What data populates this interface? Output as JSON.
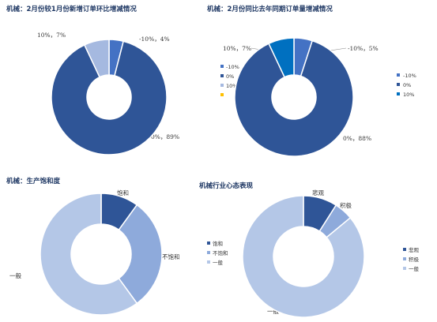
{
  "chart_data": [
    {
      "type": "pie",
      "title": "机械：2月份较1月份新增订单环比增减情况",
      "categories": [
        "-10%",
        "0%",
        "10%"
      ],
      "values": [
        4,
        89,
        7
      ],
      "labels": [
        "-10%，4%",
        "0%，89%",
        "10%，7%"
      ],
      "colors": [
        "#4472c4",
        "#2f5597",
        "#a5b9e0"
      ],
      "legend": "none"
    },
    {
      "type": "pie",
      "title": "机械：2月份同比去年同期订单量增减情况",
      "categories": [
        "-10%",
        "0%",
        "10%"
      ],
      "values": [
        5,
        88,
        7
      ],
      "labels": [
        "-10%，5%",
        "0%，88%",
        "10%，7%"
      ],
      "colors": [
        "#4472c4",
        "#2f5597",
        "#0070c0"
      ],
      "legend": "left and right"
    },
    {
      "type": "pie",
      "title": "机械：生产饱和度",
      "categories": [
        "饱和",
        "不饱和",
        "一般"
      ],
      "values": [
        10,
        30,
        60
      ],
      "labels": [
        "饱和",
        "不饱和",
        "一般"
      ],
      "colors": [
        "#2f5597",
        "#8eaadb",
        "#b4c7e7"
      ],
      "legend": "middle"
    },
    {
      "type": "pie",
      "title": "机械行业心态表现",
      "categories": [
        "悲观",
        "积极",
        "一般"
      ],
      "values": [
        9,
        5,
        86
      ],
      "labels": [
        "悲观",
        "积极",
        "一般"
      ],
      "colors": [
        "#2f5597",
        "#8eaadb",
        "#b4c7e7"
      ],
      "legend": "right"
    }
  ],
  "leg_a": [
    "-10%",
    "0%",
    "10%",
    ""
  ],
  "leg_b": [
    "-10%",
    "0%",
    "10%"
  ]
}
